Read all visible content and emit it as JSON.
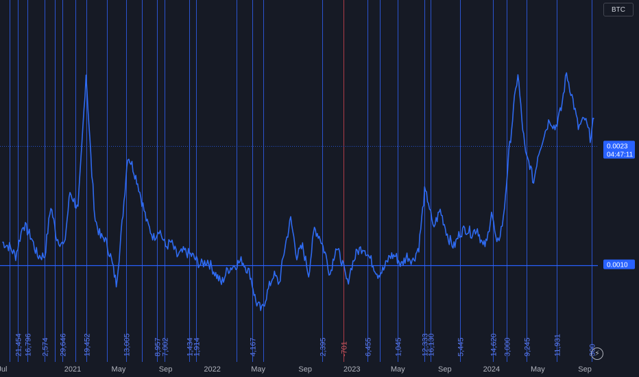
{
  "symbol_label": "BTC",
  "colors": {
    "background": "#161a25",
    "line": "#2f6bf2",
    "vline": "#2f5ff0",
    "vline_negative": "#c9434e",
    "price_tag": "#2962ff",
    "axis_text": "#b2b5be"
  },
  "chart_data": {
    "type": "line",
    "title": "",
    "xlabel": "",
    "ylabel": "",
    "x_ticks": [
      "Jul",
      "2021",
      "May",
      "Sep",
      "2022",
      "May",
      "Sep",
      "2023",
      "May",
      "Sep",
      "2024",
      "May",
      "Sep"
    ],
    "y_range": [
      0.0,
      0.0036
    ],
    "grid": false,
    "series": [
      {
        "name": "",
        "x": [
          "2020-07-01",
          "2020-07-20",
          "2020-08-05",
          "2020-08-25",
          "2020-09-15",
          "2020-10-01",
          "2020-10-20",
          "2020-11-05",
          "2020-11-20",
          "2020-12-10",
          "2020-12-25",
          "2021-01-05",
          "2021-01-15",
          "2021-01-25",
          "2021-02-05",
          "2021-02-20",
          "2021-03-01",
          "2021-03-15",
          "2021-03-25",
          "2021-04-10",
          "2021-04-25",
          "2021-05-05",
          "2021-05-15",
          "2021-05-25",
          "2021-06-05",
          "2021-06-20",
          "2021-07-01",
          "2021-07-15",
          "2021-08-01",
          "2021-08-15",
          "2021-09-01",
          "2021-09-15",
          "2021-10-01",
          "2021-10-20",
          "2021-11-10",
          "2021-12-01",
          "2021-12-20",
          "2022-01-10",
          "2022-01-25",
          "2022-02-10",
          "2022-03-01",
          "2022-03-20",
          "2022-04-10",
          "2022-04-25",
          "2022-05-10",
          "2022-05-25",
          "2022-06-10",
          "2022-06-25",
          "2022-07-10",
          "2022-07-25",
          "2022-08-10",
          "2022-08-25",
          "2022-09-10",
          "2022-09-25",
          "2022-10-10",
          "2022-10-25",
          "2022-11-05",
          "2022-11-20",
          "2022-12-05",
          "2022-12-20",
          "2023-01-01",
          "2023-01-15",
          "2023-02-01",
          "2023-02-20",
          "2023-03-10",
          "2023-03-25",
          "2023-04-10",
          "2023-04-25",
          "2023-05-10",
          "2023-05-25",
          "2023-06-10",
          "2023-06-25",
          "2023-07-10",
          "2023-07-20",
          "2023-08-01",
          "2023-08-20",
          "2023-09-10",
          "2023-09-25",
          "2023-10-10",
          "2023-10-25",
          "2023-11-10",
          "2023-11-25",
          "2023-12-10",
          "2023-12-20",
          "2024-01-01",
          "2024-01-15",
          "2024-02-01",
          "2024-02-15",
          "2024-03-01",
          "2024-03-10",
          "2024-03-20",
          "2024-03-30",
          "2024-04-10",
          "2024-04-20",
          "2024-05-01",
          "2024-05-15",
          "2024-06-01",
          "2024-06-15",
          "2024-07-01",
          "2024-07-15",
          "2024-08-01",
          "2024-08-15",
          "2024-09-01",
          "2024-09-15",
          "2024-09-25"
        ],
        "values": [
          0.00125,
          0.0012,
          0.0011,
          0.00145,
          0.0013,
          0.0011,
          0.0011,
          0.00165,
          0.0013,
          0.0012,
          0.0018,
          0.0017,
          0.0016,
          0.0023,
          0.0031,
          0.002,
          0.0015,
          0.0013,
          0.0013,
          0.0011,
          0.0008,
          0.0012,
          0.0017,
          0.0022,
          0.0021,
          0.0019,
          0.0017,
          0.00145,
          0.0013,
          0.0014,
          0.0012,
          0.00125,
          0.0011,
          0.00115,
          0.0011,
          0.001,
          0.00105,
          0.0009,
          0.0008,
          0.00095,
          0.001,
          0.00105,
          0.0009,
          0.0006,
          0.0005,
          0.0007,
          0.0009,
          0.0008,
          0.0012,
          0.0015,
          0.0011,
          0.0012,
          0.0009,
          0.0014,
          0.0013,
          0.0011,
          0.0009,
          0.0012,
          0.00105,
          0.0008,
          0.001,
          0.00115,
          0.0012,
          0.00105,
          0.0009,
          0.00095,
          0.0011,
          0.0011,
          0.001,
          0.0011,
          0.00105,
          0.0012,
          0.0018,
          0.0017,
          0.0014,
          0.0016,
          0.0013,
          0.0012,
          0.00135,
          0.0014,
          0.00135,
          0.0014,
          0.0012,
          0.00125,
          0.0016,
          0.0012,
          0.0015,
          0.0022,
          0.0028,
          0.0031,
          0.0026,
          0.0022,
          0.0021,
          0.0019,
          0.0022,
          0.0024,
          0.0026,
          0.0025,
          0.0027,
          0.0031,
          0.0028,
          0.0025,
          0.0026,
          0.0024,
          0.0026
        ]
      }
    ],
    "horizontal_lines": [
      {
        "value": 0.001,
        "label": "0.0010",
        "style": "solid"
      },
      {
        "value": 0.0023,
        "label": "0.0023",
        "sublabel": "04:47:11",
        "style": "dotted"
      }
    ],
    "vertical_markers": [
      {
        "date": "2020-07-20",
        "label": ""
      },
      {
        "date": "2020-08-10",
        "label": "21,454"
      },
      {
        "date": "2020-09-05",
        "label": "16,796"
      },
      {
        "date": "2020-10-20",
        "label": "2,574"
      },
      {
        "date": "2020-11-15",
        "label": ""
      },
      {
        "date": "2020-12-05",
        "label": "29,646"
      },
      {
        "date": "2021-01-08",
        "label": ""
      },
      {
        "date": "2021-02-05",
        "label": "19,452"
      },
      {
        "date": "2021-04-01",
        "label": ""
      },
      {
        "date": "2021-05-20",
        "label": "13,005"
      },
      {
        "date": "2021-07-01",
        "label": ""
      },
      {
        "date": "2021-08-10",
        "label": "8,957"
      },
      {
        "date": "2021-08-30",
        "label": "7,002"
      },
      {
        "date": "2021-11-01",
        "label": "1,434"
      },
      {
        "date": "2021-11-20",
        "label": "1,914"
      },
      {
        "date": "2022-03-05",
        "label": ""
      },
      {
        "date": "2022-04-15",
        "label": "4,167"
      },
      {
        "date": "2022-05-15",
        "label": ""
      },
      {
        "date": "2022-10-15",
        "label": "2,395"
      },
      {
        "date": "2022-12-10",
        "label": "-701",
        "negative": true
      },
      {
        "date": "2023-02-10",
        "label": "6,455"
      },
      {
        "date": "2023-03-15",
        "label": ""
      },
      {
        "date": "2023-05-01",
        "label": "1,045"
      },
      {
        "date": "2023-07-10",
        "label": "12,333"
      },
      {
        "date": "2023-07-25",
        "label": "16,130"
      },
      {
        "date": "2023-10-10",
        "label": "5,445"
      },
      {
        "date": "2024-01-05",
        "label": "14,620"
      },
      {
        "date": "2024-02-10",
        "label": "3,000"
      },
      {
        "date": "2024-04-01",
        "label": "9,245"
      },
      {
        "date": "2024-06-20",
        "label": "11,931"
      },
      {
        "date": "2024-09-18",
        "label": "300"
      }
    ]
  }
}
